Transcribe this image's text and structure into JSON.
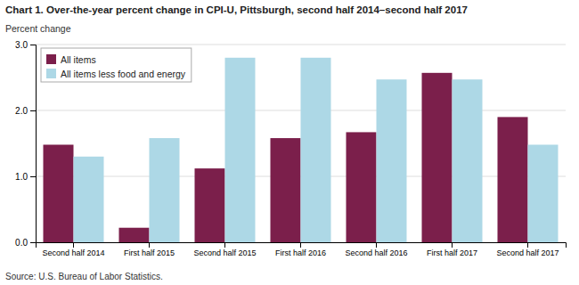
{
  "chart_data": {
    "type": "bar",
    "title": "Chart 1. Over-the-year percent change in CPI-U, Pittsburgh, second half 2014–second half 2017",
    "ylabel": "Percent change",
    "source": "Source: U.S. Bureau of Labor Statistics.",
    "categories": [
      "Second half 2014",
      "First half 2015",
      "Second half 2015",
      "First half 2016",
      "Second half 2016",
      "First half 2017",
      "Second half 2017"
    ],
    "series": [
      {
        "name": "All items",
        "color": "#7B1F4B",
        "values": [
          1.48,
          0.22,
          1.12,
          1.58,
          1.67,
          2.57,
          1.9
        ]
      },
      {
        "name": "All items less food and energy",
        "color": "#ADD8E6",
        "values": [
          1.3,
          1.58,
          2.8,
          2.8,
          2.47,
          2.47,
          1.48
        ]
      }
    ],
    "ylim": [
      0,
      3.0
    ],
    "yticks": [
      {
        "value": 0,
        "label": "0.0"
      },
      {
        "value": 1,
        "label": "1.0"
      },
      {
        "value": 2,
        "label": "2.0"
      },
      {
        "value": 3,
        "label": "3.0"
      }
    ],
    "grid": true,
    "legend": "upper left"
  }
}
